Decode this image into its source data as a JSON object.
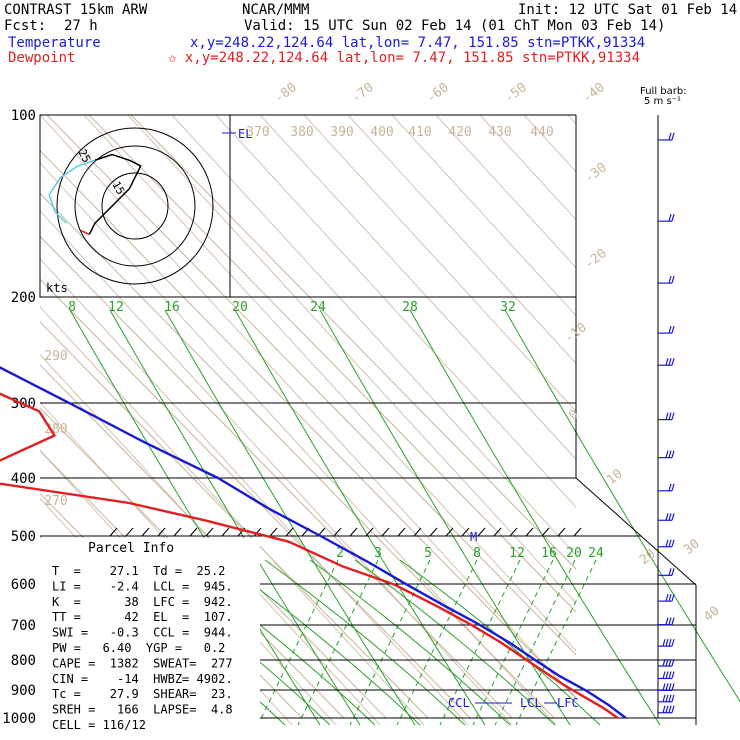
{
  "header": {
    "model": "CONTRAST 15km ARW",
    "center": "NCAR/MMM",
    "init": "Init: 12 UTC Sat 01 Feb 14",
    "fcst_label": "Fcst:",
    "fcst_value": "27 h",
    "valid": "Valid: 15 UTC Sun 02 Feb 14 (01 ChT Mon 03 Feb 14)",
    "temperature_label": "Temperature",
    "temperature_info": "x,y=248.22,124.64   lat,lon=  7.47, 151.85  stn=PTKK,91334",
    "dewpoint_label": "Dewpoint",
    "dewpoint_info": "✩ x,y=248.22,124.64   lat,lon=  7.47, 151.85  stn=PTKK,91334",
    "barb_note": "Full barb:",
    "barb_units": "5 m s⁻¹"
  },
  "colors": {
    "temperature": "#1a1ad0",
    "dewpoint": "#e02020",
    "mixing_ratio": "#2aa02a",
    "theta": "#c8b49a",
    "isotherm": "#c8b49a",
    "hodo_upper": "#5ecbe0"
  },
  "chart_data": {
    "type": "line",
    "pressure_levels": [
      "100",
      "200",
      "300",
      "400",
      "500",
      "600",
      "700",
      "800",
      "900",
      "1000"
    ],
    "pressure_values": [
      100,
      200,
      300,
      400,
      500,
      600,
      700,
      800,
      900,
      1000
    ],
    "isotherm_labels": [
      "-80",
      "-70",
      "-60",
      "-50",
      "-40",
      "-30",
      "-20",
      "-10",
      "0",
      "10",
      "20",
      "30",
      "40"
    ],
    "theta_labels": [
      "370",
      "380",
      "390",
      "400",
      "410",
      "420",
      "430",
      "440",
      "290",
      "280",
      "270"
    ],
    "theta_label_values": [
      370,
      380,
      390,
      400,
      410,
      420,
      430,
      440,
      290,
      280,
      270
    ],
    "mixing_ratio_labels_upper": [
      "8",
      "12",
      "16",
      "20",
      "24",
      "28",
      "32"
    ],
    "mixing_ratio_labels_lower": [
      "2",
      "3",
      "5",
      "8",
      "12",
      "16",
      "20",
      "24"
    ],
    "series": [
      {
        "name": "Temperature",
        "points": [
          [
            100,
            -78
          ],
          [
            110,
            -77
          ],
          [
            130,
            -71
          ],
          [
            150,
            -66
          ],
          [
            200,
            -54
          ],
          [
            250,
            -43
          ],
          [
            300,
            -32
          ],
          [
            350,
            -23
          ],
          [
            400,
            -14
          ],
          [
            450,
            -9
          ],
          [
            500,
            -3
          ],
          [
            550,
            2
          ],
          [
            600,
            6
          ],
          [
            650,
            10
          ],
          [
            700,
            14
          ],
          [
            750,
            17
          ],
          [
            800,
            19
          ],
          [
            850,
            21
          ],
          [
            900,
            24
          ],
          [
            950,
            26
          ],
          [
            1000,
            27.1
          ]
        ]
      },
      {
        "name": "Dewpoint",
        "points": [
          [
            100,
            -76
          ],
          [
            110,
            -78
          ],
          [
            120,
            -80
          ],
          [
            135,
            -77
          ],
          [
            150,
            -87
          ],
          [
            165,
            -86
          ],
          [
            200,
            -68
          ],
          [
            220,
            -63
          ],
          [
            250,
            -59
          ],
          [
            280,
            -49
          ],
          [
            310,
            -41
          ],
          [
            340,
            -43
          ],
          [
            400,
            -75
          ],
          [
            440,
            -41
          ],
          [
            470,
            -27
          ],
          [
            510,
            -12
          ],
          [
            560,
            -5
          ],
          [
            600,
            3
          ],
          [
            650,
            8
          ],
          [
            700,
            12
          ],
          [
            750,
            15
          ],
          [
            800,
            17
          ],
          [
            880,
            20
          ],
          [
            920,
            22
          ],
          [
            960,
            24
          ],
          [
            1000,
            25.2
          ]
        ]
      }
    ],
    "wind_barbs": [
      {
        "p": 110,
        "spd": 4,
        "dir": 90
      },
      {
        "p": 150,
        "spd": 3,
        "dir": 80
      },
      {
        "p": 190,
        "spd": 4,
        "dir": 70
      },
      {
        "p": 230,
        "spd": 3,
        "dir": 60
      },
      {
        "p": 260,
        "spd": 5,
        "dir": 80
      },
      {
        "p": 320,
        "spd": 6,
        "dir": 90
      },
      {
        "p": 370,
        "spd": 5,
        "dir": 100
      },
      {
        "p": 420,
        "spd": 4,
        "dir": 110
      },
      {
        "p": 470,
        "spd": 5,
        "dir": 90
      },
      {
        "p": 520,
        "spd": 6,
        "dir": 80
      },
      {
        "p": 580,
        "spd": 4,
        "dir": 90
      },
      {
        "p": 640,
        "spd": 5,
        "dir": 100
      },
      {
        "p": 700,
        "spd": 6,
        "dir": 100
      },
      {
        "p": 760,
        "spd": 7,
        "dir": 90
      },
      {
        "p": 820,
        "spd": 8,
        "dir": 85
      },
      {
        "p": 860,
        "spd": 9,
        "dir": 80
      },
      {
        "p": 900,
        "spd": 10,
        "dir": 80
      },
      {
        "p": 940,
        "spd": 9,
        "dir": 80
      },
      {
        "p": 980,
        "spd": 7,
        "dir": 90
      }
    ],
    "markers": {
      "el_label": "EL",
      "m_label": "M",
      "ccl_label": "CCL",
      "lcl_label": "LCL",
      "lfc_label": "LFC"
    },
    "hodograph": {
      "units": "kts",
      "ring_labels": [
        "25",
        "15"
      ],
      "points": [
        [
          -16,
          -10
        ],
        [
          -14,
          -6
        ],
        [
          -10,
          -2
        ],
        [
          -6,
          2
        ],
        [
          -2,
          6
        ],
        [
          0,
          10
        ],
        [
          2,
          14
        ],
        [
          -2,
          16
        ],
        [
          -8,
          18
        ],
        [
          -14,
          16
        ],
        [
          -20,
          14
        ],
        [
          -26,
          10
        ],
        [
          -30,
          4
        ],
        [
          -28,
          -2
        ],
        [
          -24,
          -6
        ]
      ]
    },
    "parcel_info": {
      "title": "Parcel Info",
      "rows": [
        "T  =    27.1  Td =  25.2",
        "LI =    -2.4  LCL =  945.",
        "K  =      38  LFC =  942.",
        "TT =      42  EL  =  107.",
        "SWI =   -0.3  CCL =  944.",
        "PW =   6.40  YGP =   0.2",
        "CAPE =  1382  SWEAT=  277",
        "CIN =    -14  HWBZ= 4902.",
        "Tc =    27.9  SHEAR=  23.",
        "SREH =   166  LAPSE=  4.8",
        "CELL = 116/12"
      ]
    }
  }
}
